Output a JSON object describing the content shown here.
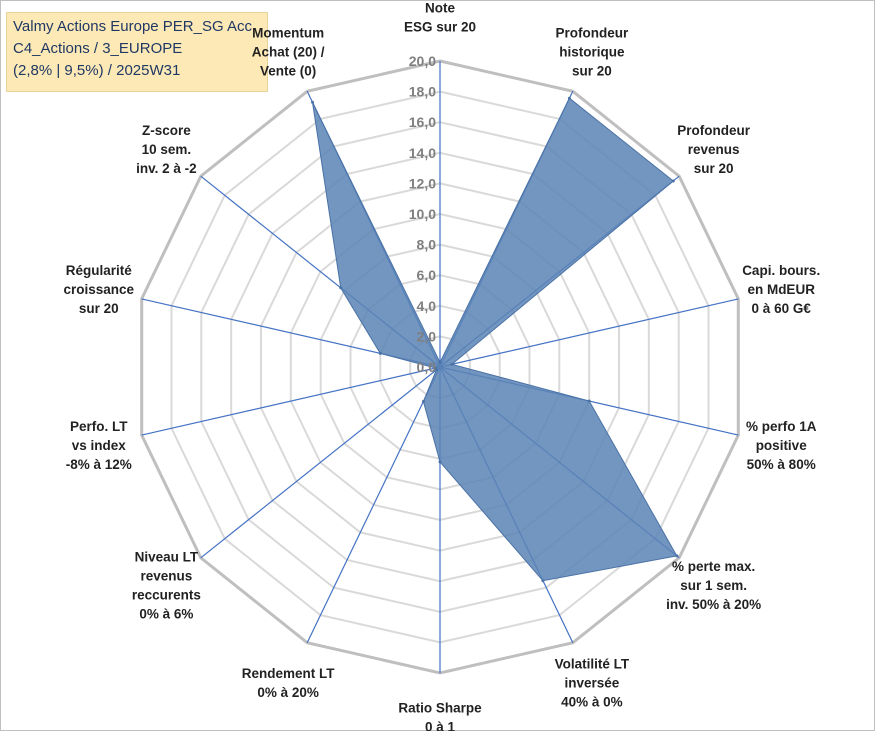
{
  "title": {
    "line1": "Valmy Actions Europe PER_SG Acc",
    "line2": "C4_Actions / 3_EUROPE",
    "line3": "(2,8% | 9,5%) / 2025W31"
  },
  "colors": {
    "series_fill": "#5b84b5",
    "series_stroke": "#4a72a6",
    "spoke": "#4472c4",
    "grid": "#d9d9d9",
    "outer_ring": "#bfbfbf"
  },
  "chart_data": {
    "type": "radar",
    "rmin": 0,
    "rmax": 20,
    "rstep": 2,
    "ticks": [
      "0,0",
      "2,0",
      "4,0",
      "6,0",
      "8,0",
      "10,0",
      "12,0",
      "14,0",
      "16,0",
      "18,0",
      "20,0"
    ],
    "axes": [
      {
        "lines": [
          "Note",
          "ESG sur 20"
        ],
        "value": 0.3
      },
      {
        "lines": [
          "Profondeur",
          "historique",
          "sur 20"
        ],
        "value": 19.5
      },
      {
        "lines": [
          "Profondeur",
          "revenus",
          "sur 20"
        ],
        "value": 19.5
      },
      {
        "lines": [
          "Capi. bours.",
          "en MdEUR",
          "0 à 60 G€"
        ],
        "value": 0.8
      },
      {
        "lines": [
          "% perfo 1A",
          "positive",
          "50% à 80%"
        ],
        "value": 10.0
      },
      {
        "lines": [
          "% perte max.",
          "sur 1 sem.",
          "inv. 50% à 20%"
        ],
        "value": 19.8
      },
      {
        "lines": [
          "Volatilité LT",
          "inversée",
          "40% à 0%"
        ],
        "value": 15.5
      },
      {
        "lines": [
          "Ratio Sharpe",
          "0 à 1"
        ],
        "value": 6.2
      },
      {
        "lines": [
          "Rendement LT",
          "0% à 20%"
        ],
        "value": 2.5
      },
      {
        "lines": [
          "Niveau LT",
          "revenus",
          "reccurents",
          "0% à 6%"
        ],
        "value": 0.3
      },
      {
        "lines": [
          "Perfo. LT",
          "vs index",
          "-8% à 12%"
        ],
        "value": 0.3
      },
      {
        "lines": [
          "Régularité",
          "croissance",
          "sur 20"
        ],
        "value": 4.0
      },
      {
        "lines": [
          "Z-score",
          "10 sem.",
          "inv. 2 à -2"
        ],
        "value": 8.3
      },
      {
        "lines": [
          "Momentum",
          "Achat (20) /",
          "Vente (0)"
        ],
        "value": 19.2
      }
    ]
  }
}
